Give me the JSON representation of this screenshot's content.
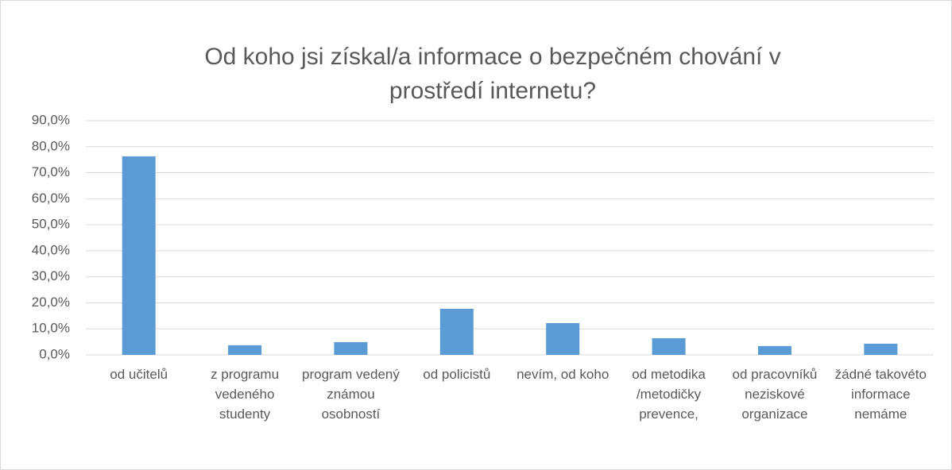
{
  "chart_data": {
    "type": "bar",
    "title": "Od koho jsi získal/a informace o bezpečném chování v prostředí internetu?",
    "categories": [
      "od učitelů",
      "z programu vedeného studenty",
      "program vedený známou osobností",
      "od policistů",
      "nevím, od koho",
      "od metodika /metodičky prevence,",
      "od pracovníků neziskové organizace",
      "žádné takovéto informace nemáme"
    ],
    "values": [
      76.3,
      3.7,
      4.9,
      17.7,
      12.2,
      6.4,
      3.4,
      4.3
    ],
    "color": "#5b9bd5",
    "ylim": [
      0,
      90
    ],
    "yticks": [
      {
        "value": 0,
        "label": "0,0%"
      },
      {
        "value": 10,
        "label": "10,0%"
      },
      {
        "value": 20,
        "label": "20,0%"
      },
      {
        "value": 30,
        "label": "30,0%"
      },
      {
        "value": 40,
        "label": "40,0%"
      },
      {
        "value": 50,
        "label": "50,0%"
      },
      {
        "value": 60,
        "label": "60,0%"
      },
      {
        "value": 70,
        "label": "70,0%"
      },
      {
        "value": 80,
        "label": "80,0%"
      },
      {
        "value": 90,
        "label": "90,0%"
      }
    ],
    "grid": true
  }
}
